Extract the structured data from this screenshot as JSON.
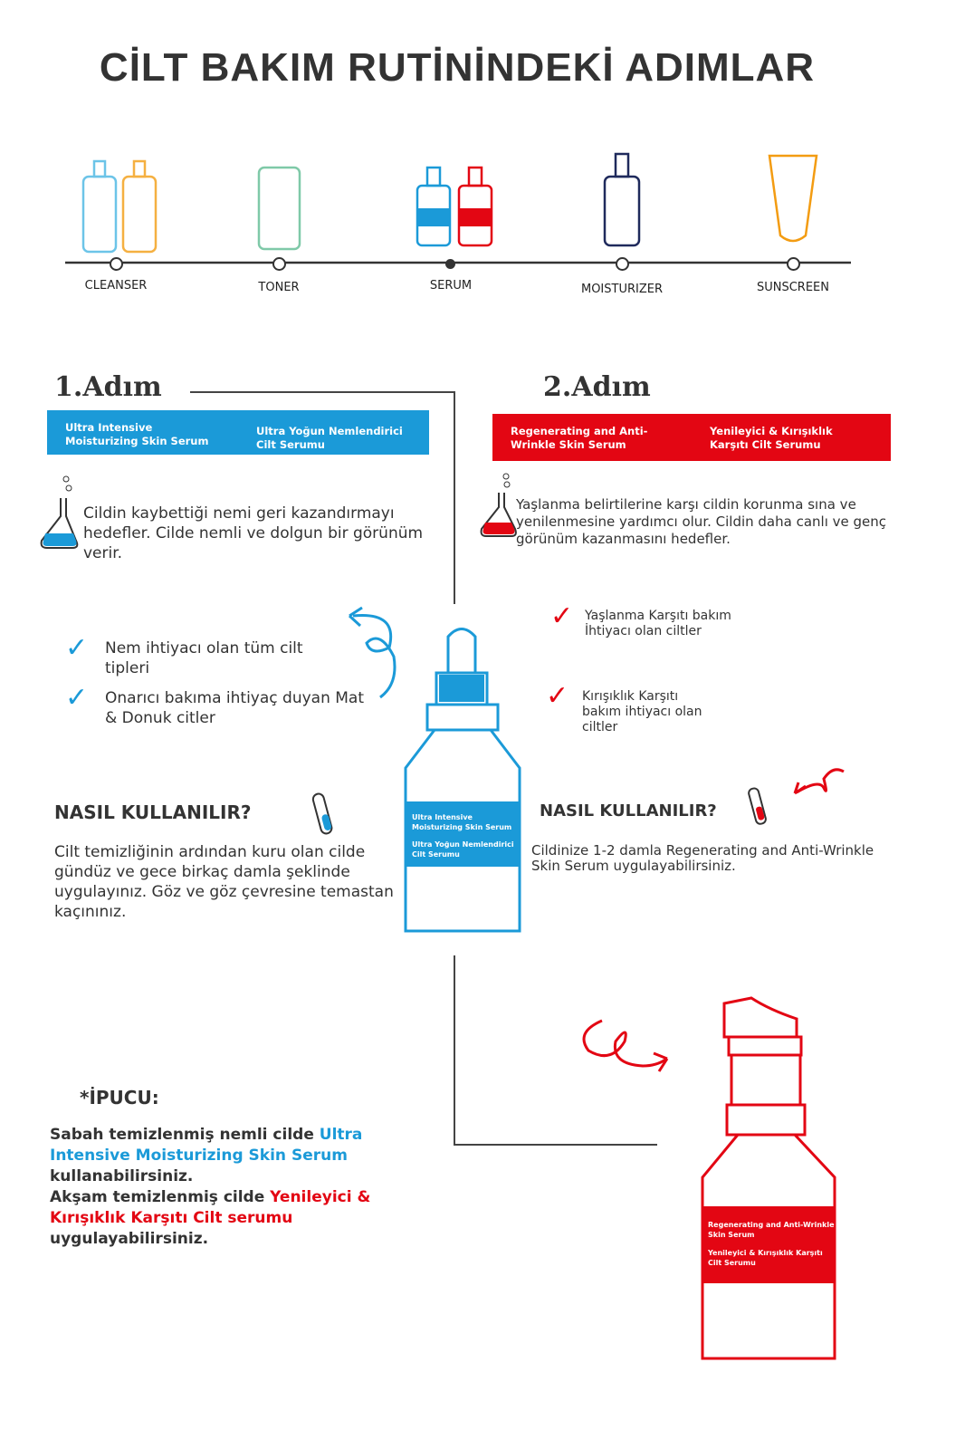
{
  "title": "CİLT BAKIM RUTİNİNDEKİ ADIMLAR",
  "routine": [
    "CLEANSER",
    "TONER",
    "SERUM",
    "MOISTURIZER",
    "SUNSCREEN"
  ],
  "colors": {
    "blue": "#1b9ad8",
    "red": "#e30613",
    "text": "#333333"
  },
  "step1": {
    "label": "1.Adım",
    "band_en": "Ultra Intensive Moisturizing Skin Serum",
    "band_tr": "Ultra Yoğun Nemlendirici Cilt Serumu",
    "desc": "Cildin kaybettiği nemi geri kazandırmayı hedefler. Cilde nemli ve dolgun bir görünüm verir.",
    "checks": [
      "Nem ihtiyacı olan tüm cilt tipleri",
      "Onarıcı bakıma ihtiyaç duyan Mat & Donuk citler"
    ],
    "howto_title": "NASIL KULLANILIR?",
    "howto": "Cilt temizliğinin ardından kuru olan cilde gündüz ve gece birkaç damla şeklinde uygulayınız. Göz ve göz çevresine temastan kaçınınız."
  },
  "step2": {
    "label": "2.Adım",
    "band_en": "Regenerating and Anti-Wrinkle Skin Serum",
    "band_tr": "Yenileyici & Kırışıklık Karşıtı Cilt Serumu",
    "desc": "Yaşlanma belirtilerine karşı cildin korunma sına ve yenilenmesine yardımcı olur. Cildin daha canlı ve genç görünüm kazanmasını hedefler.",
    "checks": [
      "Yaşlanma Karşıtı bakım İhtiyacı olan ciltler",
      "Kırışıklık Karşıtı bakım ihtiyacı olan ciltler"
    ],
    "howto_title": "NASIL KULLANILIR?",
    "howto": "Cildinize 1-2 damla Regenerating and Anti-Wrinkle Skin Serum uygulayabilirsiniz."
  },
  "tip": {
    "title": "*İPUCU:",
    "p1": "Sabah temizlenmiş nemli cilde ",
    "p1_blue": "Ultra Intensive Moisturizing Skin Serum",
    "p1_end": " kullanabilirsiniz.",
    "p2": "Akşam temizlenmiş cilde ",
    "p2_red": "Yenileyici & Kırışıklık Karşıtı Cilt serumu",
    "p2_end": " uygulayabilirsiniz."
  },
  "bottle1": {
    "l1": "Ultra Intensive Moisturizing Skin Serum",
    "l2": "Ultra Yoğun Nemlendirici Cilt Serumu"
  },
  "bottle2": {
    "l1": "Regenerating and Anti-Wrinkle Skin Serum",
    "l2": "Yenileyici & Kırışıklık Karşıtı Cilt Serumu"
  }
}
